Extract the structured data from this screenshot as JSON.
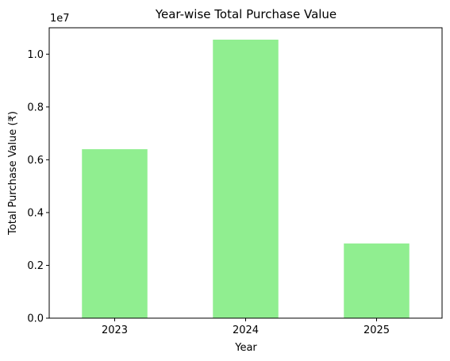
{
  "chart_data": {
    "type": "bar",
    "title": "Year-wise Total Purchase Value",
    "xlabel": "Year",
    "ylabel": "Total Purchase Value (₹)",
    "categories": [
      "2023",
      "2024",
      "2025"
    ],
    "values": [
      6400000,
      10550000,
      2830000
    ],
    "ylim": [
      0,
      11000000
    ],
    "yticks": [
      0,
      2000000,
      4000000,
      6000000,
      8000000,
      10000000
    ],
    "ytick_labels": [
      "0.0",
      "0.2",
      "0.4",
      "0.6",
      "0.8",
      "1.0"
    ],
    "offset_text": "1e7",
    "bar_color": "#90ee90",
    "grid": false,
    "legend": "none"
  }
}
